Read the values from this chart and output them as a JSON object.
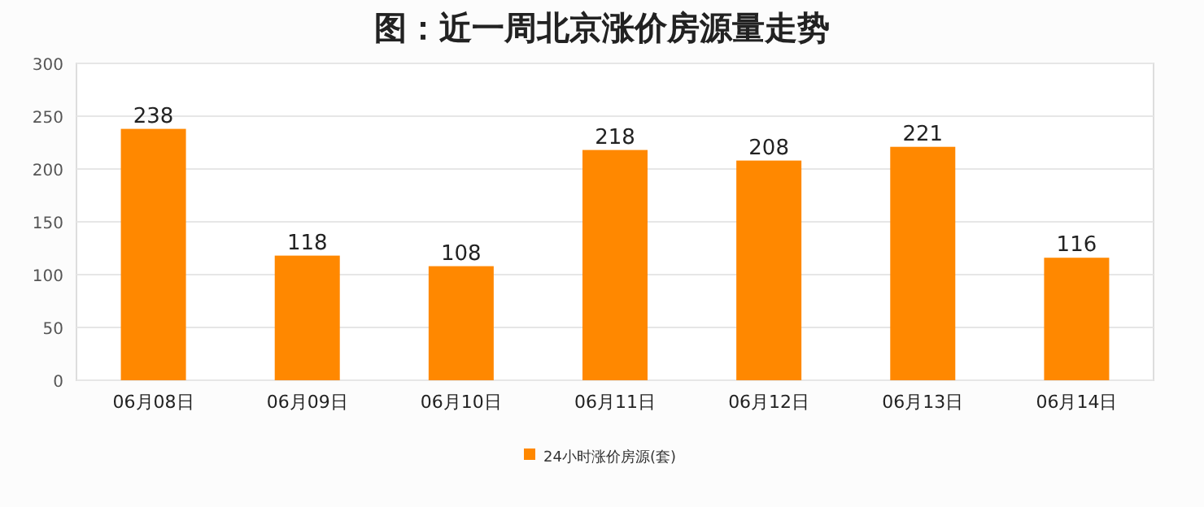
{
  "chart_data": {
    "type": "bar",
    "title": "图：近一周北京涨价房源量走势",
    "categories": [
      "06月08日",
      "06月09日",
      "06月10日",
      "06月11日",
      "06月12日",
      "06月13日",
      "06月14日"
    ],
    "series": [
      {
        "name": "24小时涨价房源(套)",
        "color": "#ff8800",
        "values": [
          238,
          118,
          108,
          218,
          208,
          221,
          116
        ]
      }
    ],
    "ylim": [
      0,
      300
    ],
    "yticks": [
      0,
      50,
      100,
      150,
      200,
      250,
      300
    ],
    "grid": "y",
    "legend": "bottom",
    "data_labels": true
  }
}
